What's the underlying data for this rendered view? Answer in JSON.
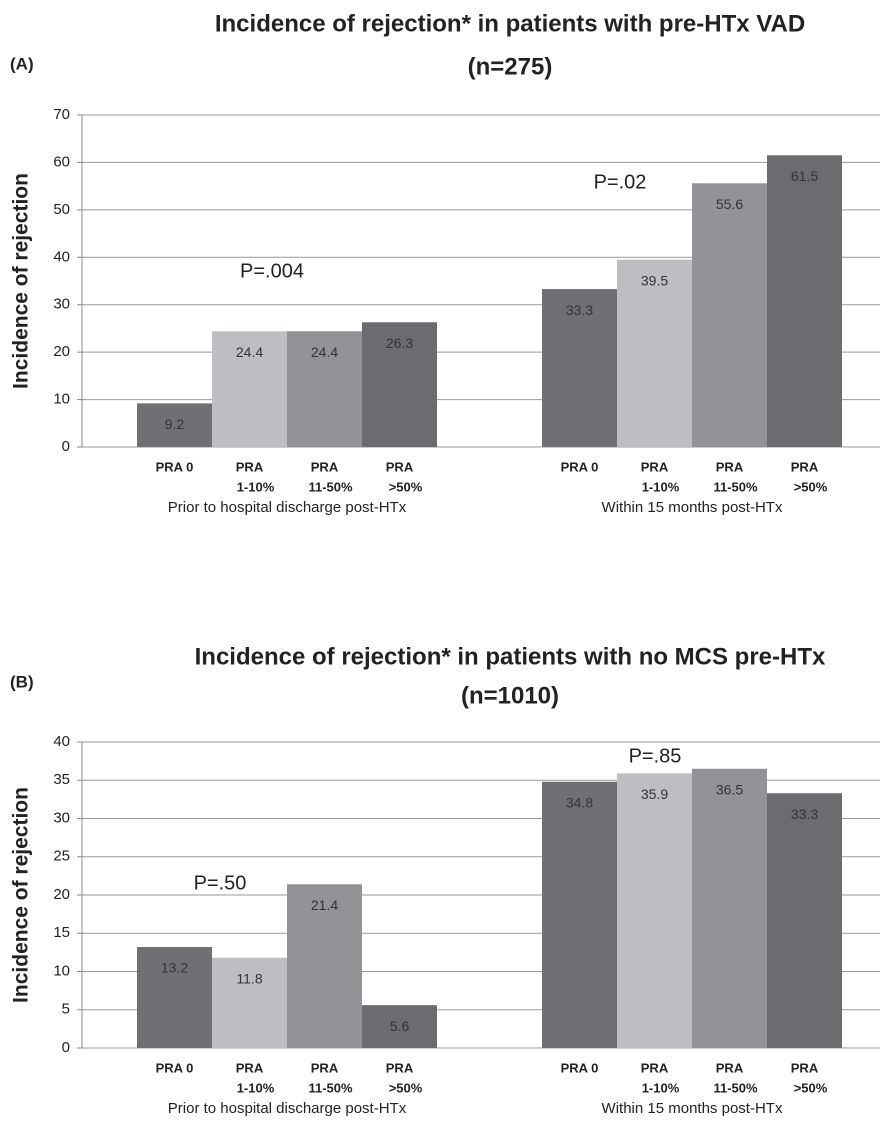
{
  "chart_data": [
    {
      "type": "bar",
      "panel_label": "(A)",
      "title": "Incidence of rejection* in patients with pre-HTx VAD",
      "subtitle": "(n=275)",
      "y_label": "Incidence of rejection",
      "categories": [
        "Prior to hospital discharge post-HTx",
        "Within 15 months post-HTx"
      ],
      "annotations": [
        "P=.004",
        "P=.02"
      ],
      "series": [
        {
          "name": [
            "PRA 0"
          ],
          "color": "#707074",
          "values": [
            9.2,
            33.3
          ]
        },
        {
          "name": [
            "PRA",
            "1-10%"
          ],
          "color": "#bdbec2",
          "values": [
            24.4,
            39.5
          ]
        },
        {
          "name": [
            "PRA",
            "11-50%"
          ],
          "color": "#939397",
          "values": [
            24.4,
            55.6
          ]
        },
        {
          "name": [
            "PRA",
            ">50%"
          ],
          "color": "#6b6b70",
          "values": [
            26.3,
            61.5
          ]
        }
      ],
      "ylim": [
        0,
        70
      ],
      "yticks": [
        0,
        10,
        20,
        30,
        40,
        50,
        60,
        70
      ],
      "grid": true
    },
    {
      "type": "bar",
      "panel_label": "(B)",
      "title": "Incidence of rejection* in patients with no MCS pre-HTx",
      "subtitle": "(n=1010)",
      "y_label": "Incidence of rejection",
      "categories": [
        "Prior to hospital discharge post-HTx",
        "Within 15 months post-HTx"
      ],
      "annotations": [
        "P=.50",
        "P=.85"
      ],
      "series": [
        {
          "name": [
            "PRA 0"
          ],
          "color": "#707074",
          "values": [
            13.2,
            34.8
          ]
        },
        {
          "name": [
            "PRA",
            "1-10%"
          ],
          "color": "#bdbec2",
          "values": [
            11.8,
            35.9
          ]
        },
        {
          "name": [
            "PRA",
            "11-50%"
          ],
          "color": "#939397",
          "values": [
            21.4,
            36.5
          ]
        },
        {
          "name": [
            "PRA",
            ">50%"
          ],
          "color": "#6b6b70",
          "values": [
            5.6,
            33.3
          ]
        }
      ],
      "ylim": [
        0,
        40
      ],
      "yticks": [
        0,
        5,
        10,
        15,
        20,
        25,
        30,
        35,
        40
      ],
      "grid": true
    }
  ]
}
